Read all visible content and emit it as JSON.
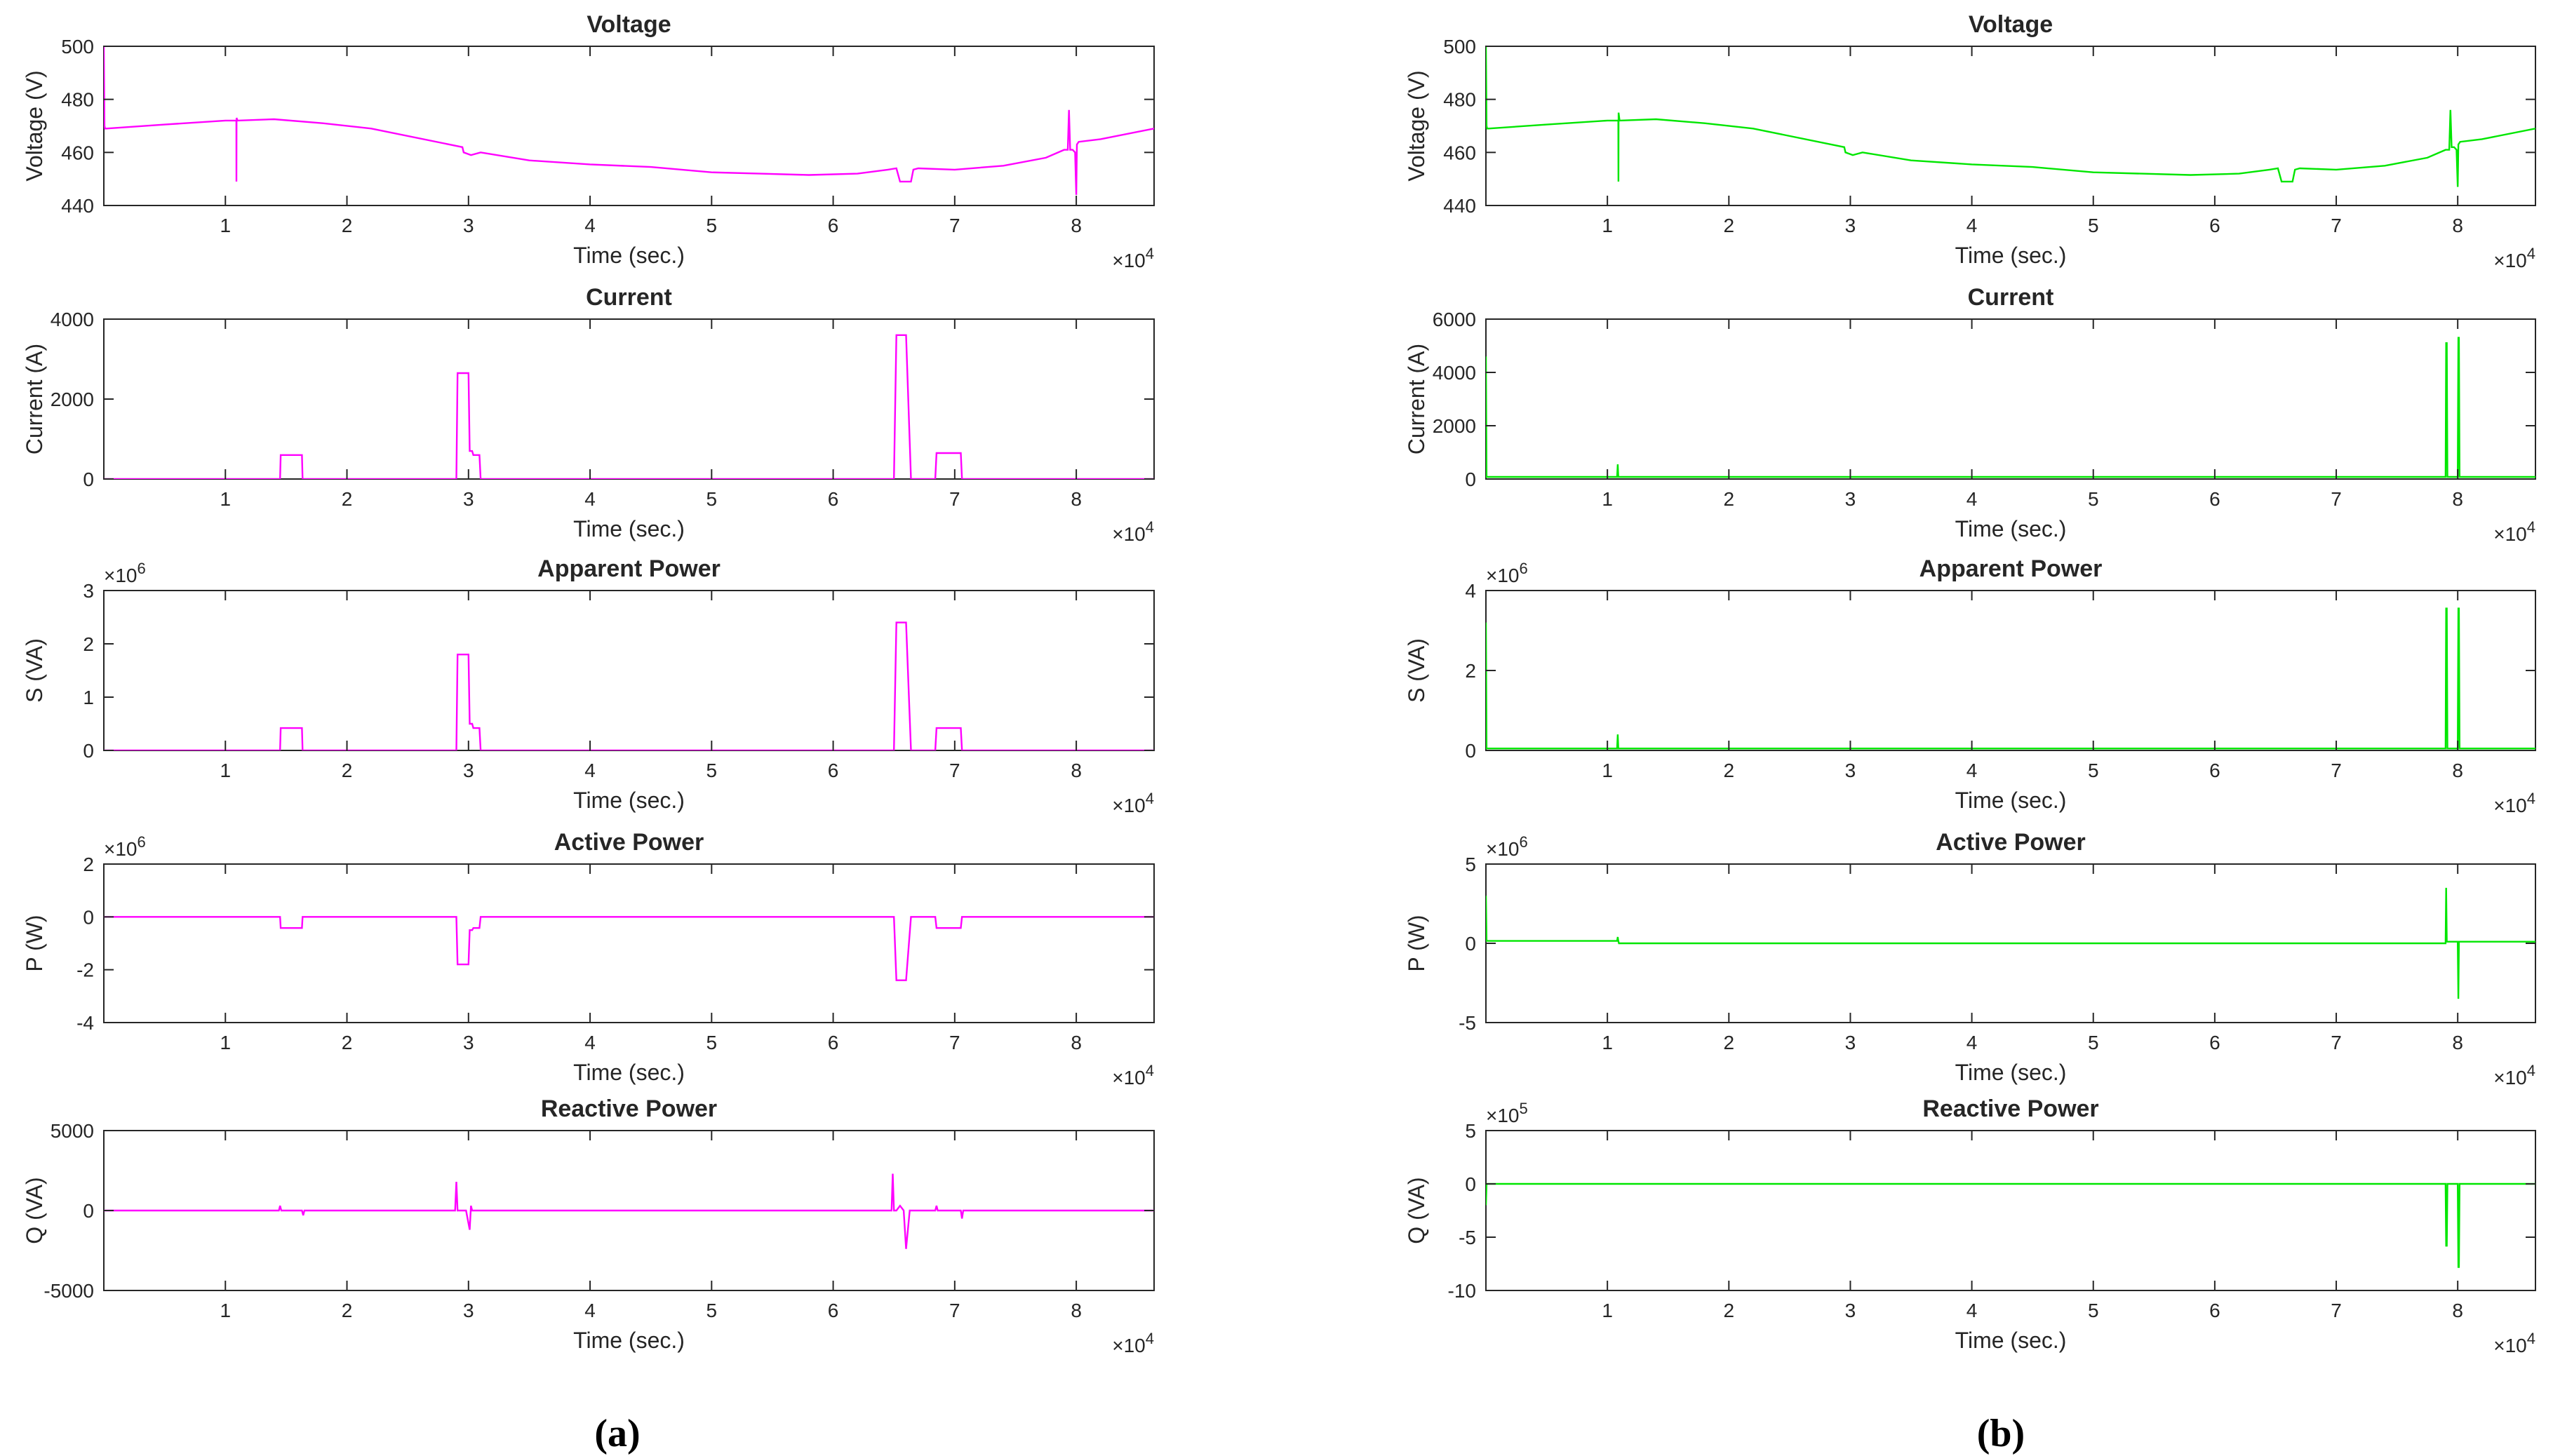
{
  "panel_labels": [
    "(a)",
    "(b)"
  ],
  "colors": {
    "a": "#ff00ff",
    "b": "#00e600",
    "axis": "#262626"
  },
  "chart_data": [
    {
      "id": "a-voltage",
      "type": "line",
      "title": "Voltage",
      "xlabel": "Time (sec.)",
      "ylabel": "Voltage (V)",
      "xlim": [
        0,
        86400
      ],
      "xticks": [
        1,
        2,
        3,
        4,
        5,
        6,
        7,
        8
      ],
      "xexp": "4",
      "ylim": [
        440,
        500
      ],
      "yticks": [
        440,
        460,
        480,
        500
      ],
      "ytick_labels": [
        "440",
        "460",
        "480",
        "500"
      ],
      "yexp": null,
      "series": [
        {
          "name": "Voltage",
          "x": [
            0,
            50,
            100,
            200,
            5000,
            10000,
            10900,
            10910,
            10920,
            11000,
            14000,
            18000,
            22000,
            29500,
            29600,
            30200,
            31000,
            35000,
            40000,
            45000,
            50000,
            54000,
            58000,
            62000,
            64500,
            65200,
            65500,
            66400,
            66600,
            67000,
            70000,
            74000,
            77500,
            79000,
            79300,
            79400,
            79500,
            79700,
            79900,
            80000,
            80050,
            80200,
            82000,
            86400
          ],
          "y": [
            500,
            470,
            469,
            469,
            470.5,
            472,
            472,
            449,
            473,
            472,
            472.5,
            471,
            469,
            462,
            460,
            459,
            460,
            457,
            455.5,
            454.5,
            452.5,
            452,
            451.5,
            452,
            453.5,
            454,
            449,
            449,
            453.5,
            454,
            453.5,
            455,
            458,
            461,
            461,
            476,
            461,
            461,
            460,
            444,
            463,
            464,
            465,
            469
          ]
        }
      ]
    },
    {
      "id": "a-current",
      "type": "line",
      "title": "Current",
      "xlabel": "Time (sec.)",
      "ylabel": "Current (A)",
      "xlim": [
        0,
        86400
      ],
      "xticks": [
        1,
        2,
        3,
        4,
        5,
        6,
        7,
        8
      ],
      "xexp": "4",
      "ylim": [
        0,
        4000
      ],
      "yticks": [
        0,
        2000,
        4000
      ],
      "ytick_labels": [
        "0",
        "2000",
        "4000"
      ],
      "yexp": null,
      "series": [
        {
          "name": "Current",
          "x": [
            0,
            14500,
            14550,
            16300,
            16350,
            29000,
            29100,
            30000,
            30100,
            30300,
            30400,
            30900,
            31000,
            65000,
            65200,
            66000,
            66400,
            66600,
            68400,
            68500,
            70500,
            70600,
            86400
          ],
          "y": [
            0,
            0,
            600,
            600,
            0,
            0,
            2650,
            2650,
            700,
            700,
            600,
            600,
            0,
            0,
            3600,
            3600,
            0,
            0,
            0,
            650,
            650,
            0,
            0
          ]
        }
      ]
    },
    {
      "id": "a-apparent",
      "type": "line",
      "title": "Apparent Power",
      "xlabel": "Time (sec.)",
      "ylabel": "S (VA)",
      "xlim": [
        0,
        86400
      ],
      "xticks": [
        1,
        2,
        3,
        4,
        5,
        6,
        7,
        8
      ],
      "xexp": "4",
      "ylim": [
        0,
        3
      ],
      "yticks": [
        0,
        1,
        2,
        3
      ],
      "ytick_labels": [
        "0",
        "1",
        "2",
        "3"
      ],
      "yexp": "6",
      "series": [
        {
          "name": "Apparent Power",
          "x": [
            0,
            14500,
            14550,
            16300,
            16350,
            29000,
            29100,
            30000,
            30100,
            30300,
            30400,
            30900,
            31000,
            65000,
            65200,
            66000,
            66400,
            66600,
            68400,
            68500,
            70500,
            70600,
            86400
          ],
          "y": [
            0,
            0,
            0.42,
            0.42,
            0,
            0,
            1.8,
            1.8,
            0.5,
            0.5,
            0.42,
            0.42,
            0,
            0,
            2.4,
            2.4,
            0,
            0,
            0,
            0.42,
            0.42,
            0,
            0
          ]
        }
      ]
    },
    {
      "id": "a-active",
      "type": "line",
      "title": "Active Power",
      "xlabel": "Time (sec.)",
      "ylabel": "P (W)",
      "xlim": [
        0,
        86400
      ],
      "xticks": [
        1,
        2,
        3,
        4,
        5,
        6,
        7,
        8
      ],
      "xexp": "4",
      "ylim": [
        -4,
        2
      ],
      "yticks": [
        -4,
        -2,
        0,
        2
      ],
      "ytick_labels": [
        "-4",
        "-2",
        "0",
        "2"
      ],
      "yexp": "6",
      "series": [
        {
          "name": "Active Power",
          "x": [
            0,
            14500,
            14550,
            16300,
            16350,
            29000,
            29100,
            30000,
            30100,
            30300,
            30400,
            30900,
            31000,
            65000,
            65200,
            66000,
            66400,
            66600,
            68400,
            68500,
            70500,
            70600,
            86400
          ],
          "y": [
            0,
            0,
            -0.42,
            -0.42,
            0,
            0,
            -1.8,
            -1.8,
            -0.5,
            -0.5,
            -0.42,
            -0.42,
            0,
            0,
            -2.4,
            -2.4,
            0,
            0,
            0,
            -0.42,
            -0.42,
            0,
            0
          ]
        }
      ]
    },
    {
      "id": "a-reactive",
      "type": "line",
      "title": "Reactive Power",
      "xlabel": "Time (sec.)",
      "ylabel": "Q (VA)",
      "xlim": [
        0,
        86400
      ],
      "xticks": [
        1,
        2,
        3,
        4,
        5,
        6,
        7,
        8
      ],
      "xexp": "4",
      "ylim": [
        -5000,
        5000
      ],
      "yticks": [
        -5000,
        0,
        5000
      ],
      "ytick_labels": [
        "-5000",
        "0",
        "5000"
      ],
      "yexp": null,
      "series": [
        {
          "name": "Reactive Power",
          "x": [
            0,
            14400,
            14500,
            14600,
            16300,
            16400,
            16500,
            28900,
            29000,
            29100,
            29500,
            29800,
            30100,
            30200,
            30300,
            64800,
            64900,
            65000,
            65200,
            65500,
            65800,
            66000,
            66300,
            66500,
            68400,
            68500,
            68600,
            70500,
            70600,
            70700,
            86400
          ],
          "y": [
            0,
            0,
            300,
            0,
            0,
            -300,
            0,
            0,
            1800,
            0,
            0,
            0,
            -1200,
            300,
            0,
            0,
            2300,
            0,
            0,
            300,
            0,
            -2400,
            0,
            0,
            0,
            300,
            0,
            0,
            -500,
            0,
            0
          ]
        }
      ]
    },
    {
      "id": "b-voltage",
      "type": "line",
      "title": "Voltage",
      "xlabel": "Time (sec.)",
      "ylabel": "Voltage (V)",
      "xlim": [
        0,
        86400
      ],
      "xticks": [
        1,
        2,
        3,
        4,
        5,
        6,
        7,
        8
      ],
      "xexp": "4",
      "ylim": [
        440,
        500
      ],
      "yticks": [
        440,
        460,
        480,
        500
      ],
      "ytick_labels": [
        "440",
        "460",
        "480",
        "500"
      ],
      "yexp": null,
      "series": [
        {
          "name": "Voltage",
          "x": [
            0,
            50,
            100,
            200,
            5000,
            10000,
            10900,
            10910,
            10920,
            11000,
            14000,
            18000,
            22000,
            29500,
            29600,
            30200,
            31000,
            35000,
            40000,
            45000,
            50000,
            54000,
            58000,
            62000,
            64500,
            65200,
            65500,
            66400,
            66600,
            67000,
            70000,
            74000,
            77500,
            79000,
            79300,
            79400,
            79500,
            79700,
            79900,
            80000,
            80050,
            80200,
            82000,
            86400
          ],
          "y": [
            500,
            470,
            469,
            469,
            470.5,
            472,
            472,
            449,
            475,
            472,
            472.5,
            471,
            469,
            462,
            460,
            459,
            460,
            457,
            455.5,
            454.5,
            452.5,
            452,
            451.5,
            452,
            453.5,
            454,
            449,
            449,
            453.5,
            454,
            453.5,
            455,
            458,
            461,
            461,
            476,
            462,
            462,
            461,
            447,
            463,
            464,
            465,
            469
          ]
        }
      ]
    },
    {
      "id": "b-current",
      "type": "line",
      "title": "Current",
      "xlabel": "Time (sec.)",
      "ylabel": "Current (A)",
      "xlim": [
        0,
        86400
      ],
      "xticks": [
        1,
        2,
        3,
        4,
        5,
        6,
        7,
        8
      ],
      "xexp": "4",
      "ylim": [
        0,
        6000
      ],
      "yticks": [
        0,
        2000,
        4000,
        6000
      ],
      "ytick_labels": [
        "0",
        "2000",
        "4000",
        "6000"
      ],
      "yexp": null,
      "series": [
        {
          "name": "Current",
          "x": [
            0,
            50,
            100,
            10800,
            10850,
            10900,
            10950,
            11000,
            79000,
            79050,
            79100,
            79150,
            80000,
            80050,
            80100,
            80150,
            86400
          ],
          "y": [
            4600,
            80,
            80,
            80,
            550,
            80,
            80,
            80,
            80,
            5100,
            5100,
            80,
            80,
            5300,
            5300,
            80,
            80
          ]
        }
      ]
    },
    {
      "id": "b-apparent",
      "type": "line",
      "title": "Apparent Power",
      "xlabel": "Time (sec.)",
      "ylabel": "S (VA)",
      "xlim": [
        0,
        86400
      ],
      "xticks": [
        1,
        2,
        3,
        4,
        5,
        6,
        7,
        8
      ],
      "xexp": "4",
      "ylim": [
        0,
        4
      ],
      "yticks": [
        0,
        2,
        4
      ],
      "ytick_labels": [
        "0",
        "2",
        "4"
      ],
      "yexp": "6",
      "series": [
        {
          "name": "Apparent Power",
          "x": [
            0,
            50,
            100,
            10800,
            10850,
            10900,
            10950,
            11000,
            79000,
            79050,
            79100,
            79150,
            80000,
            80050,
            80100,
            80150,
            86400
          ],
          "y": [
            3.2,
            0.05,
            0.05,
            0.05,
            0.4,
            0.05,
            0.05,
            0.05,
            0.05,
            3.55,
            3.55,
            0.05,
            0.05,
            3.55,
            3.55,
            0.05,
            0.05
          ]
        }
      ]
    },
    {
      "id": "b-active",
      "type": "line",
      "title": "Active Power",
      "xlabel": "Time (sec.)",
      "ylabel": "P (W)",
      "xlim": [
        0,
        86400
      ],
      "xticks": [
        1,
        2,
        3,
        4,
        5,
        6,
        7,
        8
      ],
      "xexp": "4",
      "ylim": [
        -5,
        5
      ],
      "yticks": [
        -5,
        0,
        5
      ],
      "ytick_labels": [
        "-5",
        "0",
        "5"
      ],
      "yexp": "6",
      "series": [
        {
          "name": "Active Power",
          "x": [
            0,
            50,
            100,
            10800,
            10850,
            10900,
            10950,
            11000,
            79000,
            79050,
            79100,
            79150,
            80000,
            80050,
            80100,
            80150,
            86400
          ],
          "y": [
            3.0,
            0.15,
            0.15,
            0.15,
            0.4,
            0.15,
            0.0,
            0.0,
            0.0,
            3.5,
            0.1,
            0.1,
            0.1,
            -3.5,
            0.1,
            0.1,
            0.1
          ]
        }
      ]
    },
    {
      "id": "b-reactive",
      "type": "line",
      "title": "Reactive Power",
      "xlabel": "Time (sec.)",
      "ylabel": "Q (VA)",
      "xlim": [
        0,
        86400
      ],
      "xticks": [
        1,
        2,
        3,
        4,
        5,
        6,
        7,
        8
      ],
      "xexp": "4",
      "ylim": [
        -10,
        5
      ],
      "yticks": [
        -10,
        -5,
        0,
        5
      ],
      "ytick_labels": [
        "-10",
        "-5",
        "0",
        "5"
      ],
      "yexp": "5",
      "series": [
        {
          "name": "Reactive Power",
          "x": [
            0,
            50,
            100,
            79000,
            79050,
            79100,
            79150,
            80000,
            80050,
            80100,
            80150,
            86400
          ],
          "y": [
            -2.0,
            0,
            0,
            0,
            -5.8,
            -5.8,
            0,
            0,
            -7.8,
            -7.8,
            0,
            0
          ]
        }
      ]
    }
  ]
}
